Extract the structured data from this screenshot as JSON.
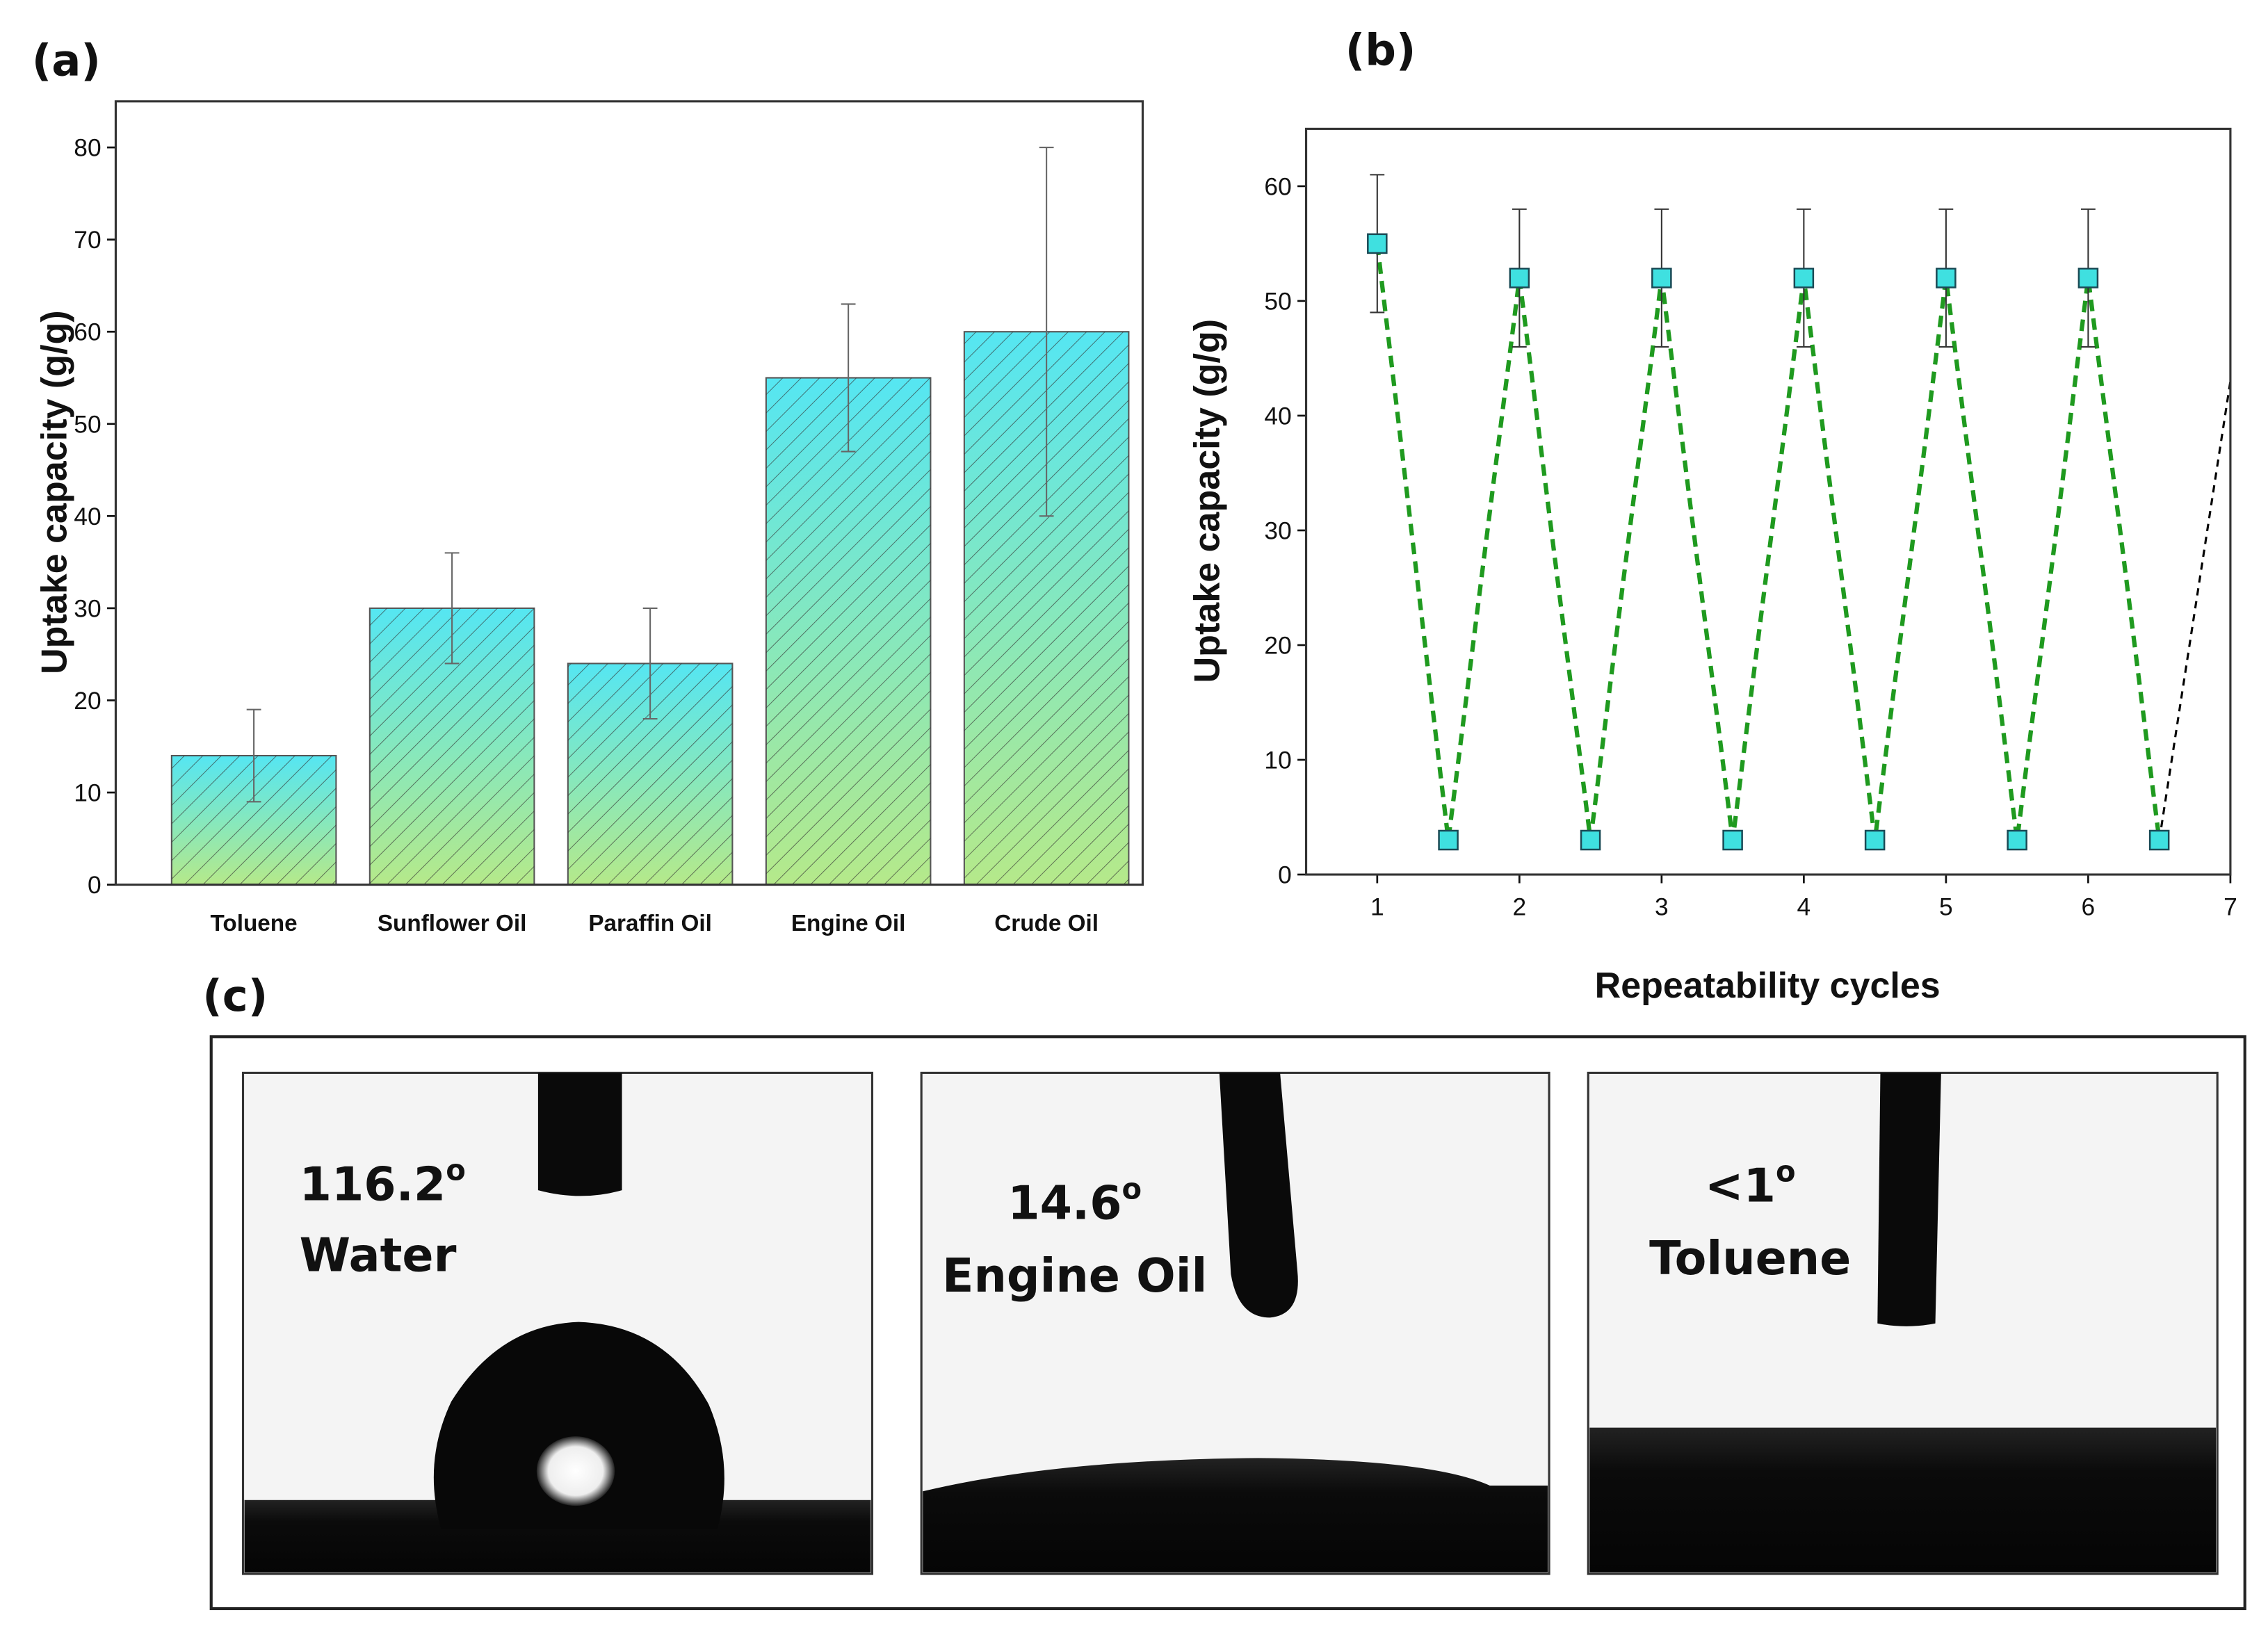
{
  "charts": [
    {
      "type": "bar",
      "panel": "(a)",
      "ylabel": "Uptake capacity (g/g)",
      "categories": [
        "Toluene",
        "Sunflower Oil",
        "Paraffin Oil",
        "Engine Oil",
        "Crude Oil"
      ],
      "values": [
        14,
        30,
        24,
        55,
        60
      ],
      "errors": [
        5,
        6,
        6,
        8,
        20
      ],
      "color_top": "#55e6f2",
      "color_bottom": "#b5e98a",
      "ylim": [
        0,
        85
      ],
      "yticks": [
        0,
        10,
        20,
        30,
        40,
        50,
        60,
        70,
        80
      ],
      "grid": false
    },
    {
      "type": "line",
      "panel": "(b)",
      "xlabel": "Repeatability cycles",
      "ylabel": "Uptake capacity (g/g)",
      "series": [
        {
          "color": "#1f9a1f",
          "marker_color": "#3fe0e0",
          "x": [
            1,
            1.5,
            2,
            2.5,
            3,
            3.5,
            4,
            4.5,
            5,
            5.5,
            6,
            6.5
          ],
          "values": [
            55,
            3,
            52,
            3,
            52,
            3,
            52,
            3,
            52,
            3,
            52,
            3
          ],
          "errors": [
            6,
            null,
            6,
            null,
            6,
            null,
            6,
            null,
            6,
            null,
            6,
            null
          ]
        },
        {
          "color": "#000000",
          "x": [
            6.5,
            7
          ],
          "values": [
            3,
            43
          ]
        }
      ],
      "xlim": [
        0.5,
        7
      ],
      "xticks": [
        1,
        2,
        3,
        4,
        5,
        6,
        7
      ],
      "ylim": [
        0,
        65
      ],
      "yticks": [
        0,
        10,
        20,
        30,
        40,
        50,
        60
      ],
      "grid": false
    }
  ],
  "photos": {
    "panel": "(c)",
    "items": [
      {
        "angle": "116.2",
        "degree": "o",
        "liquid": "Water"
      },
      {
        "angle": "14.6",
        "degree": "o",
        "liquid": "Engine Oil"
      },
      {
        "angle": "<1",
        "degree": "o",
        "liquid": "Toluene"
      }
    ]
  }
}
